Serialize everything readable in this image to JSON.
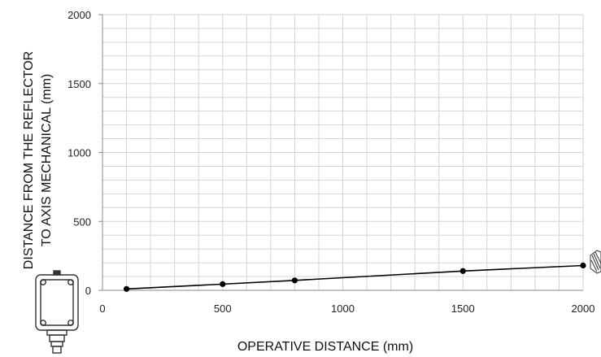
{
  "chart_data": {
    "type": "line",
    "xlabel": "OPERATIVE DISTANCE (mm)",
    "ylabel_line1": "DISTANCE  FROM THE REFLECTOR",
    "ylabel_line2": "TO AXIS MECHANICAL (mm)",
    "xlim": [
      0,
      2000
    ],
    "ylim": [
      0,
      2000
    ],
    "x_ticks": [
      "0",
      "500",
      "1000",
      "1500",
      "2000"
    ],
    "y_ticks": [
      "0",
      "500",
      "1000",
      "1500",
      "2000"
    ],
    "grid": true,
    "series": [
      {
        "x": [
          100,
          500,
          800,
          1500,
          2000
        ],
        "y": [
          10,
          45,
          72,
          140,
          180
        ],
        "color": "#000000"
      }
    ]
  },
  "icons": {
    "left": "sensor-body-icon",
    "right": "reflector-icon"
  }
}
